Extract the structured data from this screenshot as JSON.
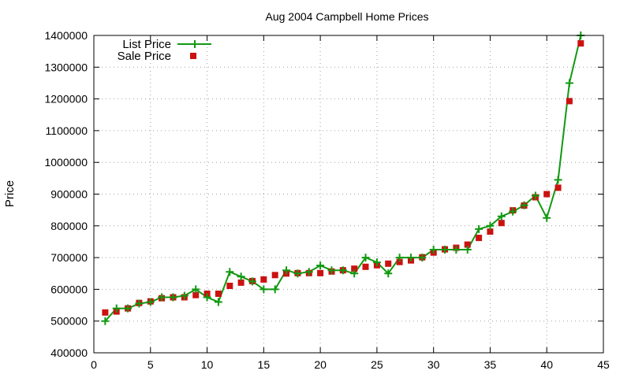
{
  "chart_data": {
    "type": "line",
    "title": "Aug 2004 Campbell Home Prices",
    "xlabel": "",
    "ylabel": "Price",
    "xlim": [
      0,
      45
    ],
    "ylim": [
      400000,
      1400000
    ],
    "x_ticks": [
      0,
      5,
      10,
      15,
      20,
      25,
      30,
      35,
      40,
      45
    ],
    "y_ticks": [
      400000,
      500000,
      600000,
      700000,
      800000,
      900000,
      1000000,
      1100000,
      1200000,
      1300000,
      1400000
    ],
    "grid": true,
    "legend_position": "top-left",
    "series": [
      {
        "name": "List Price",
        "style": "line-with-plus-markers",
        "color": "#119911",
        "x": [
          1,
          2,
          3,
          4,
          5,
          6,
          7,
          8,
          9,
          10,
          11,
          12,
          13,
          14,
          15,
          16,
          17,
          18,
          19,
          20,
          21,
          22,
          23,
          24,
          25,
          26,
          27,
          28,
          29,
          30,
          31,
          32,
          33,
          34,
          35,
          36,
          37,
          38,
          39,
          40,
          41,
          42,
          43
        ],
        "values": [
          500000,
          540000,
          540000,
          555000,
          560000,
          575000,
          575000,
          580000,
          600000,
          575000,
          560000,
          655000,
          640000,
          625000,
          600000,
          600000,
          660000,
          650000,
          655000,
          675000,
          660000,
          660000,
          650000,
          700000,
          685000,
          650000,
          700000,
          700000,
          700000,
          725000,
          725000,
          725000,
          725000,
          790000,
          800000,
          830000,
          845000,
          865000,
          895000,
          825000,
          945000,
          1250000,
          1400000
        ]
      },
      {
        "name": "Sale Price",
        "style": "square-markers",
        "color": "#cc1111",
        "x": [
          1,
          2,
          3,
          4,
          5,
          6,
          7,
          8,
          9,
          10,
          11,
          12,
          13,
          14,
          15,
          16,
          17,
          18,
          19,
          20,
          21,
          22,
          23,
          24,
          25,
          26,
          27,
          28,
          29,
          30,
          31,
          32,
          33,
          34,
          35,
          36,
          37,
          38,
          39,
          40,
          41,
          42,
          43
        ],
        "values": [
          527000,
          530000,
          540000,
          557000,
          562000,
          572000,
          575000,
          575000,
          582000,
          586000,
          586000,
          611000,
          621000,
          626000,
          631000,
          645000,
          650000,
          651000,
          651000,
          651000,
          656000,
          660000,
          665000,
          671000,
          676000,
          681000,
          686000,
          691000,
          701000,
          716000,
          726000,
          731000,
          741000,
          762000,
          782000,
          809000,
          849000,
          864000,
          890000,
          900000,
          920000,
          1193000,
          1375000
        ]
      }
    ]
  }
}
